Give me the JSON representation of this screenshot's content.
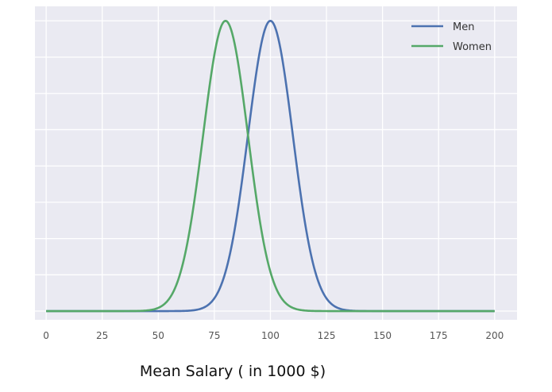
{
  "chart_data": {
    "type": "line",
    "xlabel": "Mean Salary ( in 1000 $)",
    "ylabel": "",
    "title": "",
    "xlim": [
      -5,
      210
    ],
    "xticks": [
      0,
      25,
      50,
      75,
      100,
      125,
      150,
      175,
      200
    ],
    "ylim": [
      -0.03,
      1.05
    ],
    "y_tick_labels_shown": false,
    "grid": true,
    "legend_position": "top-right",
    "background_color": "#EAEAF2",
    "series": [
      {
        "name": "Men",
        "color": "#4C72B0",
        "distribution": "normal",
        "mean": 100,
        "sd": 10,
        "x": [
          0,
          25,
          50,
          60,
          65,
          70,
          75,
          80,
          85,
          90,
          95,
          100,
          105,
          110,
          115,
          120,
          125,
          130,
          135,
          140,
          150,
          175,
          200
        ],
        "y": [
          0,
          0,
          0,
          0.0003,
          0.0022,
          0.011,
          0.044,
          0.135,
          0.325,
          0.607,
          0.882,
          1.0,
          0.882,
          0.607,
          0.325,
          0.135,
          0.044,
          0.011,
          0.0022,
          0.0003,
          0,
          0,
          0
        ]
      },
      {
        "name": "Women",
        "color": "#55A868",
        "distribution": "normal",
        "mean": 80,
        "sd": 10,
        "x": [
          0,
          25,
          40,
          45,
          50,
          55,
          60,
          65,
          70,
          75,
          80,
          85,
          90,
          95,
          100,
          105,
          110,
          115,
          120,
          125,
          150,
          175,
          200
        ],
        "y": [
          0,
          0,
          0.0003,
          0.0022,
          0.011,
          0.044,
          0.135,
          0.325,
          0.607,
          0.882,
          1.0,
          0.882,
          0.607,
          0.325,
          0.135,
          0.044,
          0.011,
          0.0022,
          0.0003,
          0,
          0,
          0,
          0
        ]
      }
    ]
  }
}
